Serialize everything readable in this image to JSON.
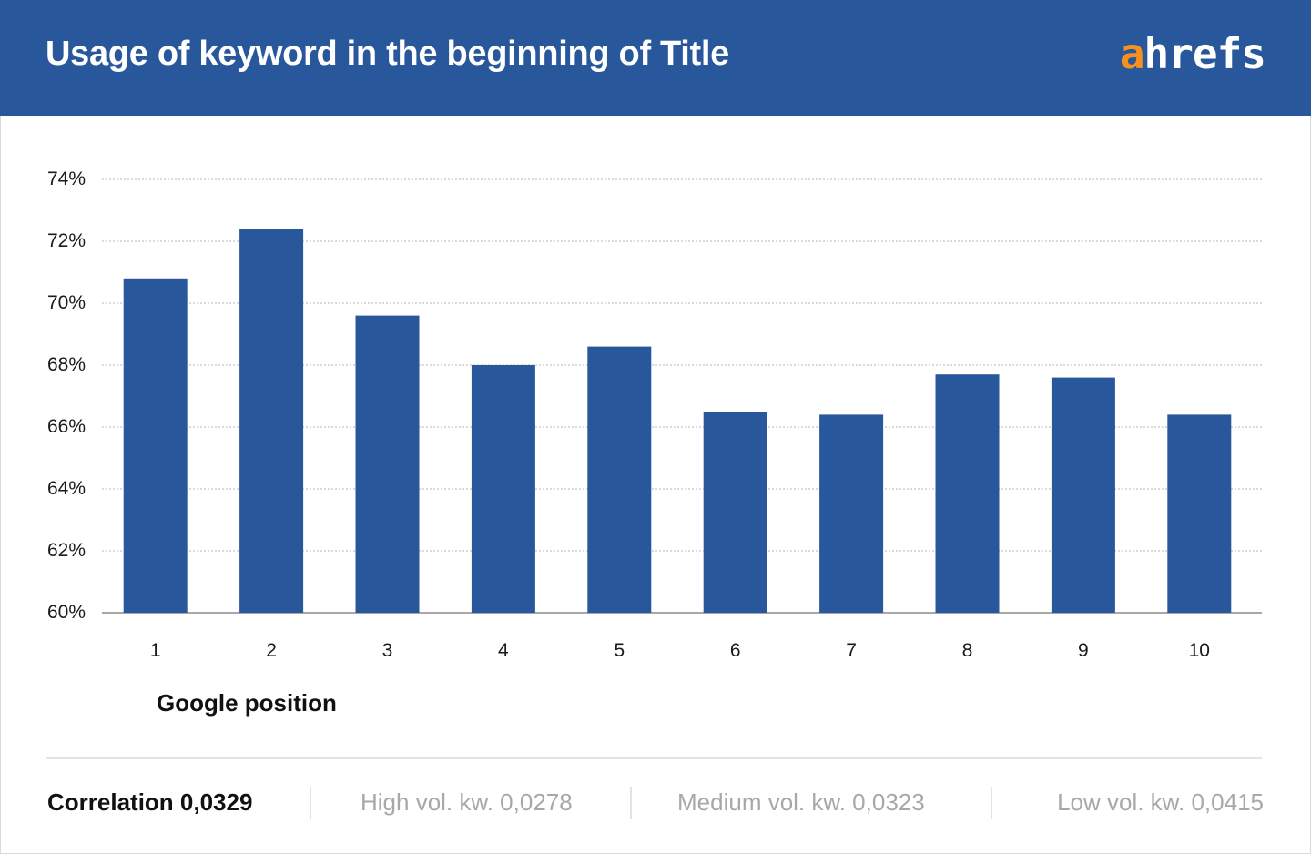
{
  "header": {
    "title": "Usage of keyword in the beginning of Title",
    "logo_highlight": "a",
    "logo_rest": "hrefs"
  },
  "colors": {
    "header_bg": "#28579b",
    "bar": "#28579b",
    "logo_accent": "#f7901e",
    "muted_text": "#a8a8a8"
  },
  "chart_data": {
    "type": "bar",
    "categories": [
      "1",
      "2",
      "3",
      "4",
      "5",
      "6",
      "7",
      "8",
      "9",
      "10"
    ],
    "values": [
      70.8,
      72.4,
      69.6,
      68.0,
      68.6,
      66.5,
      66.4,
      67.7,
      67.6,
      66.4
    ],
    "unit": "%",
    "ylim": [
      60,
      74
    ],
    "yticks": [
      60,
      62,
      64,
      66,
      68,
      70,
      72,
      74
    ],
    "ytick_labels": [
      "60%",
      "62%",
      "64%",
      "66%",
      "68%",
      "70%",
      "72%",
      "74%"
    ],
    "xlabel": "Google position",
    "ylabel": "",
    "grid": "horizontal dotted",
    "legend": "none"
  },
  "footer": {
    "correlation": "Correlation 0,0329",
    "high_vol": "High vol. kw. 0,0278",
    "medium_vol": "Medium vol. kw. 0,0323",
    "low_vol": "Low vol. kw. 0,0415"
  }
}
